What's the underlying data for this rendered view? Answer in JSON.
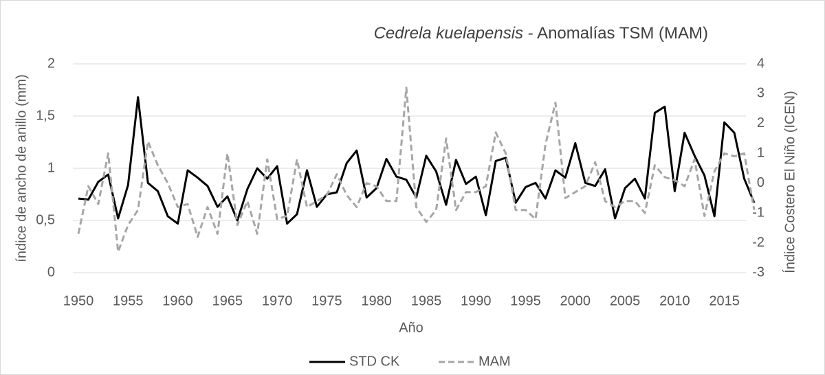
{
  "chart_data": {
    "type": "line",
    "title": {
      "species": "Cedrela kuelapensis",
      "text": " - Anomalías TSM (MAM)"
    },
    "x_label": "Año",
    "y_label": "índice de ancho de anillo (mm)",
    "y2_label": "Índice Costero El Niño (ICEN)",
    "x": [
      1950,
      1951,
      1952,
      1953,
      1954,
      1955,
      1956,
      1957,
      1958,
      1959,
      1960,
      1961,
      1962,
      1963,
      1964,
      1965,
      1966,
      1967,
      1968,
      1969,
      1970,
      1971,
      1972,
      1973,
      1974,
      1975,
      1976,
      1977,
      1978,
      1979,
      1980,
      1981,
      1982,
      1983,
      1984,
      1985,
      1986,
      1987,
      1988,
      1989,
      1990,
      1991,
      1992,
      1993,
      1994,
      1995,
      1996,
      1997,
      1998,
      1999,
      2000,
      2001,
      2002,
      2003,
      2004,
      2005,
      2006,
      2007,
      2008,
      2009,
      2010,
      2011,
      2012,
      2013,
      2014,
      2015,
      2016,
      2017,
      2018
    ],
    "xlim": [
      1950,
      2018
    ],
    "xticks": [
      1950,
      1955,
      1960,
      1965,
      1970,
      1975,
      1980,
      1985,
      1990,
      1995,
      2000,
      2005,
      2010,
      2015
    ],
    "ylim": [
      0,
      2
    ],
    "yticks": [
      0,
      {
        "value": 0.5,
        "label": "0,5"
      },
      1,
      {
        "value": 1.5,
        "label": "1,5"
      },
      2
    ],
    "y2lim": [
      -3,
      4
    ],
    "y2ticks": [
      -3,
      -2,
      -1,
      0,
      1,
      2,
      3,
      4
    ],
    "grid": true,
    "series": [
      {
        "name": "STD CK",
        "color": "#000000",
        "dash": false,
        "values": [
          0.71,
          0.7,
          0.87,
          0.94,
          0.52,
          0.84,
          1.68,
          0.86,
          0.78,
          0.54,
          0.47,
          0.98,
          0.91,
          0.83,
          0.63,
          0.73,
          0.5,
          0.8,
          1.0,
          0.9,
          1.02,
          0.47,
          0.56,
          0.98,
          0.63,
          0.75,
          0.77,
          1.05,
          1.17,
          0.72,
          0.81,
          1.09,
          0.92,
          0.89,
          0.72,
          1.12,
          0.97,
          0.65,
          1.08,
          0.85,
          0.92,
          0.55,
          1.07,
          1.1,
          0.67,
          0.82,
          0.86,
          0.71,
          0.98,
          0.91,
          1.24,
          0.86,
          0.83,
          0.99,
          0.52,
          0.81,
          0.9,
          0.71,
          1.53,
          1.59,
          0.78,
          1.34,
          1.12,
          0.93,
          0.54,
          1.44,
          1.34,
          0.9,
          0.67
        ]
      },
      {
        "name": "MAM",
        "color": "#a6a6a6",
        "dash": true,
        "axis": "y2",
        "values": [
          -1.7,
          -0.1,
          -0.7,
          1.0,
          -2.3,
          -1.4,
          -0.9,
          1.4,
          0.6,
          0.0,
          -0.8,
          -0.7,
          -1.8,
          -0.8,
          -1.7,
          1.0,
          -1.4,
          -0.6,
          -1.7,
          0.8,
          -1.2,
          -1.1,
          0.8,
          -0.8,
          -0.6,
          -0.4,
          0.3,
          -0.4,
          -0.8,
          0.0,
          -0.1,
          -0.6,
          -0.6,
          3.2,
          -0.8,
          -1.3,
          -0.9,
          1.5,
          -0.9,
          -0.3,
          -0.3,
          -0.1,
          1.7,
          1.0,
          -0.9,
          -0.9,
          -1.2,
          1.3,
          2.7,
          -0.5,
          -0.3,
          -0.1,
          0.7,
          -0.6,
          -0.8,
          -0.6,
          -0.6,
          -1.0,
          0.6,
          0.2,
          0.1,
          -0.1,
          0.8,
          -1.1,
          0.4,
          1.0,
          0.9,
          1.0,
          -0.9
        ]
      }
    ]
  }
}
